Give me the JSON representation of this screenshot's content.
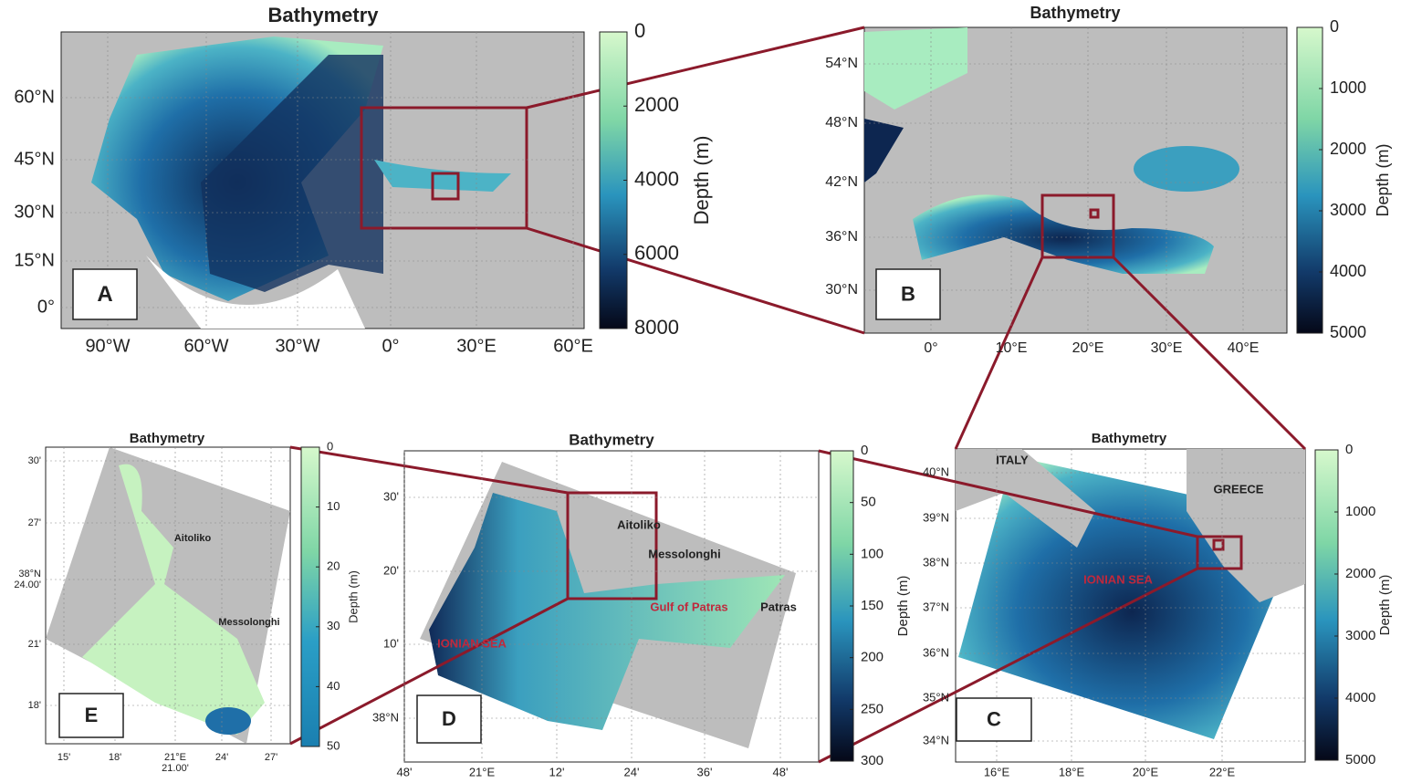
{
  "panels": [
    {
      "title": "Bathymetry",
      "xticks": [
        "90°W",
        "60°W",
        "30°W",
        "0°",
        "30°E",
        "60°E"
      ],
      "yticks": [
        "60°N",
        "45°N",
        "30°N",
        "15°N",
        "0°"
      ],
      "colorbar": {
        "ticks": [
          "0",
          "2000",
          "4000",
          "6000",
          "8000"
        ],
        "label": "Depth (m)"
      },
      "letter": "A",
      "places": []
    },
    {
      "title": "Bathymetry",
      "xticks": [
        "0°",
        "10°E",
        "20°E",
        "30°E",
        "40°E"
      ],
      "yticks": [
        "54°N",
        "48°N",
        "42°N",
        "36°N",
        "30°N"
      ],
      "colorbar": {
        "ticks": [
          "0",
          "1000",
          "2000",
          "3000",
          "4000",
          "5000"
        ],
        "label": "Depth (m)"
      },
      "letter": "B",
      "places": []
    },
    {
      "title": "Bathymetry",
      "xticks": [
        "15'",
        "18'",
        [
          "21°E",
          "21.00'"
        ],
        "24'",
        "27'"
      ],
      "yticks": [
        "30'",
        "27'",
        [
          "38°N",
          "24.00'"
        ],
        "21'",
        "18'"
      ],
      "colorbar": {
        "ticks": [
          "0",
          "10",
          "20",
          "30",
          "40",
          "50"
        ],
        "label": "Depth (m)"
      },
      "letter": "E",
      "places": [
        "Aitoliko",
        "Messolonghi"
      ]
    },
    {
      "title": "Bathymetry",
      "xticks": [
        "48'",
        "21°E",
        "12'",
        "24'",
        "36'",
        "48'"
      ],
      "yticks": [
        "30'",
        "20'",
        "10'",
        "38°N"
      ],
      "colorbar": {
        "ticks": [
          "0",
          "50",
          "100",
          "150",
          "200",
          "250",
          "300"
        ],
        "label": "Depth (m)"
      },
      "letter": "D",
      "places": [
        "Aitoliko",
        "Messolonghi",
        "Gulf of Patras",
        "Patras",
        "IONIAN SEA"
      ]
    },
    {
      "title": "Bathymetry",
      "xticks": [
        "16°E",
        "18°E",
        "20°E",
        "22°E"
      ],
      "yticks": [
        "40°N",
        "39°N",
        "38°N",
        "37°N",
        "36°N",
        "35°N",
        "34°N"
      ],
      "colorbar": {
        "ticks": [
          "0",
          "1000",
          "2000",
          "3000",
          "4000",
          "5000"
        ],
        "label": "Depth (m)"
      },
      "letter": "C",
      "places": [
        "ITALY",
        "GREECE",
        "IONIAN SEA"
      ]
    }
  ]
}
